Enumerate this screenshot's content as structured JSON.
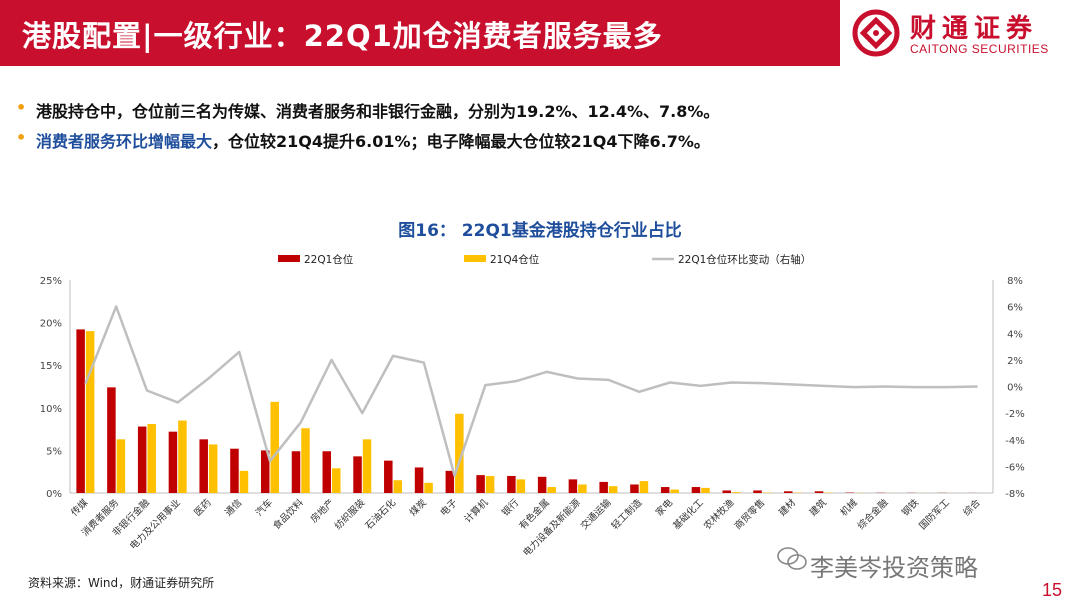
{
  "header": {
    "title": "港股配置|一级行业：22Q1加仓消费者服务最多",
    "logo_cn": "财通证券",
    "logo_en": "CAITONG SECURITIES"
  },
  "bullets": {
    "b1": "港股持仓中，仓位前三名为传媒、消费者服务和非银行金融，分别为19.2%、12.4%、7.8%。",
    "b2_highlight": "消费者服务环比增幅最大",
    "b2_rest": "，仓位较21Q4提升6.01%；电子降幅最大仓位较21Q4下降6.7%。"
  },
  "colors": {
    "brand_red": "#c8102e",
    "series_22q1": "#c00000",
    "series_21q4": "#ffc000",
    "series_change": "#bfbfbf",
    "title_blue": "#1f4e9c",
    "bullet_dot": "#f0a010"
  },
  "chart_data": {
    "type": "bar",
    "title": "图16：  22Q1基金港股持仓行业占比",
    "categories": [
      "传媒",
      "消费者服务",
      "非银行金融",
      "电力及公用事业",
      "医药",
      "通信",
      "汽车",
      "食品饮料",
      "房地产",
      "纺织服装",
      "石油石化",
      "煤炭",
      "电子",
      "计算机",
      "银行",
      "有色金属",
      "电力设备及新能源",
      "交通运输",
      "轻工制造",
      "家电",
      "基础化工",
      "农林牧渔",
      "商贸零售",
      "建材",
      "建筑",
      "机械",
      "综合金融",
      "钢铁",
      "国防军工",
      "综合"
    ],
    "series": [
      {
        "name": "22Q1仓位",
        "axis": "left",
        "type": "bar",
        "values": [
          19.2,
          12.4,
          7.8,
          7.2,
          6.3,
          5.2,
          5.0,
          4.9,
          4.9,
          4.3,
          3.8,
          3.0,
          2.6,
          2.1,
          2.0,
          1.9,
          1.6,
          1.3,
          1.0,
          0.7,
          0.7,
          0.3,
          0.3,
          0.2,
          0.2,
          0.05,
          0.03,
          0.02,
          0.02,
          0.01
        ]
      },
      {
        "name": "21Q4仓位",
        "axis": "left",
        "type": "bar",
        "values": [
          19.0,
          6.3,
          8.1,
          8.5,
          5.7,
          2.6,
          10.7,
          7.6,
          2.9,
          6.3,
          1.5,
          1.2,
          9.3,
          2.0,
          1.6,
          0.7,
          1.0,
          0.8,
          1.4,
          0.4,
          0.6,
          0.1,
          0.05,
          0.05,
          0.05,
          0.02,
          0.01,
          0.01,
          0.01,
          0.0
        ]
      },
      {
        "name": "22Q1仓位环比变动（右轴）",
        "axis": "right",
        "type": "line",
        "values": [
          0.2,
          6.01,
          -0.3,
          -1.2,
          0.6,
          2.6,
          -5.6,
          -2.7,
          2.0,
          -2.0,
          2.3,
          1.8,
          -6.7,
          0.1,
          0.4,
          1.1,
          0.6,
          0.5,
          -0.4,
          0.3,
          0.05,
          0.3,
          0.25,
          0.15,
          0.05,
          -0.05,
          0.0,
          -0.05,
          -0.05,
          0.0
        ]
      }
    ],
    "left_axis": {
      "min": 0,
      "max": 25,
      "ticks": [
        "0%",
        "5%",
        "10%",
        "15%",
        "20%",
        "25%"
      ]
    },
    "right_axis": {
      "min": -8,
      "max": 8,
      "ticks": [
        "-8%",
        "-6%",
        "-4%",
        "-2%",
        "0%",
        "2%",
        "4%",
        "6%",
        "8%"
      ]
    },
    "legend_position": "top",
    "grid": false
  },
  "footer": {
    "source": "资料来源：Wind，财通证券研究所",
    "watermark": "李美岑投资策略",
    "page_number": "15"
  }
}
